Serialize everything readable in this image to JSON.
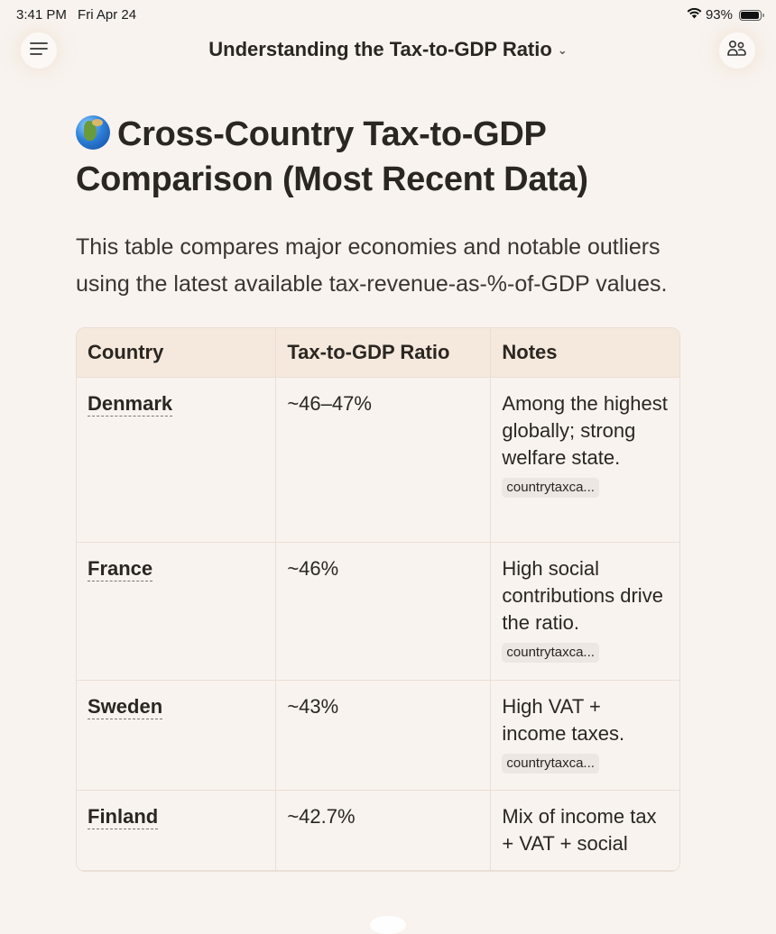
{
  "status_bar": {
    "time": "3:41 PM",
    "date": "Fri Apr 24",
    "battery": "93%",
    "battery_level": 0.93,
    "wifi_icon": "wifi-icon",
    "battery_icon": "battery-icon"
  },
  "header": {
    "title": "Understanding the Tax-to-GDP Ratio",
    "chevron": "⌄",
    "menu_icon": "menu-icon",
    "people_icon": "people-icon"
  },
  "article": {
    "heading_icon": "globe-icon",
    "heading": "Cross-Country Tax-to-GDP Comparison (Most Recent Data)",
    "intro": "This table compares major economies and notable outliers using the latest available tax-revenue-as-%-of-GDP values."
  },
  "table": {
    "columns": [
      "Country",
      "Tax-to-GDP Ratio",
      "Notes"
    ],
    "rows": [
      {
        "country": "Denmark",
        "ratio": "~46–47%",
        "notes": "Among the highest globally; strong welfare state.",
        "citation": "countrytaxca..."
      },
      {
        "country": "France",
        "ratio": "~46%",
        "notes": "High social contributions drive the ratio.",
        "citation": "countrytaxca..."
      },
      {
        "country": "Sweden",
        "ratio": "~43%",
        "notes": "High VAT + income taxes.",
        "citation": "countrytaxca..."
      },
      {
        "country": "Finland",
        "ratio": "~42.7%",
        "notes": "Mix of income tax + VAT + social",
        "citation": ""
      }
    ]
  }
}
